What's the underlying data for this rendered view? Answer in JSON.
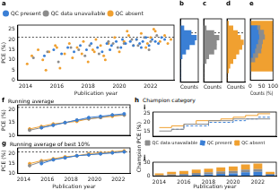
{
  "chart_data": [
    {
      "type": "scatter",
      "title": "a",
      "x_label": "Publication year",
      "y_label": "PCE (%)",
      "xlim": [
        2013.5,
        2023.5
      ],
      "xticks": [
        2014,
        2016,
        2018,
        2020,
        2022
      ],
      "ylim": [
        0,
        27
      ],
      "yticks": [
        0,
        5,
        10,
        15,
        20,
        25
      ],
      "grid": false,
      "legend": "top",
      "reference_y": 21,
      "marker": "circle",
      "series": [
        {
          "name": "QC present",
          "color": "#3a7fd5",
          "x": [
            2015.2,
            2015.8,
            2016.3,
            2016.7,
            2017.1,
            2017.5,
            2017.9,
            2018.2,
            2018.6,
            2018.9,
            2019.2,
            2019.5,
            2019.8,
            2020.1,
            2020.4,
            2020.7,
            2020.9,
            2021.1,
            2021.3,
            2021.5,
            2021.7,
            2021.9,
            2022.1,
            2022.3,
            2022.5,
            2022.7,
            2022.9,
            2021.4,
            2020.2,
            2019.4
          ],
          "values": [
            12,
            15,
            13,
            16,
            14,
            17,
            15,
            18,
            16,
            14,
            18,
            17,
            19,
            16,
            18,
            19,
            17,
            20,
            18,
            19,
            21,
            17,
            20,
            19,
            18,
            21,
            20,
            16,
            20,
            15
          ]
        },
        {
          "name": "QC data unavailable",
          "color": "#8c8c8c",
          "x": [
            2014.5,
            2015.4,
            2016.1,
            2016.9,
            2017.4,
            2018.1,
            2018.7,
            2019.3,
            2019.9,
            2020.3,
            2020.8,
            2021.2,
            2021.6,
            2022.0,
            2022.4,
            2017.8,
            2019.6,
            2021.9
          ],
          "values": [
            11,
            14,
            9,
            16,
            15,
            17,
            13,
            19,
            16,
            18,
            20,
            17,
            21,
            19,
            22,
            12,
            18,
            15
          ]
        },
        {
          "name": "QC absent",
          "color": "#f0a030",
          "x": [
            2014.1,
            2014.4,
            2014.8,
            2015.1,
            2015.5,
            2015.9,
            2016.2,
            2016.5,
            2016.8,
            2017.0,
            2017.3,
            2017.7,
            2018.0,
            2018.3,
            2018.5,
            2018.8,
            2019.0,
            2019.3,
            2019.7,
            2020.0,
            2020.3,
            2020.6,
            2020.9,
            2021.1,
            2021.4,
            2021.7,
            2022.0,
            2022.3,
            2022.6,
            2022.9,
            2023.1,
            2023.3,
            2015.3,
            2016.0,
            2017.6,
            2019.1,
            2020.5,
            2021.8,
            2022.2,
            2018.4
          ],
          "values": [
            8,
            12,
            15,
            10,
            14,
            17,
            6,
            13,
            18,
            11,
            16,
            19,
            9,
            15,
            20,
            17,
            12,
            18,
            21,
            14,
            19,
            22,
            17,
            20,
            23,
            16,
            21,
            24,
            19,
            22,
            18,
            20,
            5,
            16,
            13,
            10,
            24,
            18,
            25,
            14
          ]
        }
      ]
    },
    {
      "type": "histogram",
      "title": "b",
      "orientation": "horizontal",
      "x_label": "Counts",
      "bins": [
        0,
        2,
        4,
        6,
        8,
        10,
        12,
        14,
        16,
        18,
        20,
        22,
        24,
        26
      ],
      "values": [
        0,
        0,
        0,
        0,
        0,
        1,
        3,
        5,
        8,
        9,
        6,
        2,
        0
      ],
      "color": "#3a7fd5",
      "xlim": [
        0,
        10
      ],
      "ylim": [
        0,
        27
      ],
      "tick_labels": false,
      "grid": false,
      "reference_y": 21
    },
    {
      "type": "histogram",
      "title": "c",
      "orientation": "horizontal",
      "x_label": "Counts",
      "bins": [
        0,
        2,
        4,
        6,
        8,
        10,
        12,
        14,
        16,
        18,
        20,
        22,
        24,
        26
      ],
      "values": [
        0,
        0,
        0,
        0,
        1,
        2,
        4,
        5,
        5,
        6,
        4,
        1,
        0
      ],
      "color": "#8c8c8c",
      "xlim": [
        0,
        7
      ],
      "ylim": [
        0,
        27
      ],
      "tick_labels": false,
      "grid": false,
      "reference_y": 21
    },
    {
      "type": "histogram",
      "title": "d",
      "orientation": "horizontal",
      "x_label": "Counts",
      "bins": [
        0,
        2,
        4,
        6,
        8,
        10,
        12,
        14,
        16,
        18,
        20,
        22,
        24,
        26
      ],
      "values": [
        0,
        0,
        1,
        2,
        4,
        6,
        8,
        10,
        11,
        9,
        7,
        4,
        1
      ],
      "color": "#f0a030",
      "xlim": [
        0,
        12
      ],
      "ylim": [
        0,
        27
      ],
      "tick_labels": false,
      "grid": false,
      "reference_y": 21
    },
    {
      "type": "bar",
      "title": "e",
      "orientation": "horizontal",
      "stacked": true,
      "x_label": "Counts (%)",
      "bins": [
        0,
        2,
        4,
        6,
        8,
        10,
        12,
        14,
        16,
        18,
        20,
        22,
        24,
        26
      ],
      "xlim": [
        0,
        100
      ],
      "xticks": [
        0,
        50,
        100
      ],
      "ylim": [
        0,
        27
      ],
      "tick_labels": "x",
      "grid": false,
      "reference_y": 21,
      "series": [
        {
          "name": "QC present",
          "color": "#3a7fd5",
          "values": [
            0,
            0,
            0,
            0,
            0,
            11,
            20,
            25,
            33,
            38,
            35,
            29,
            0
          ]
        },
        {
          "name": "QC data unavailable",
          "color": "#8c8c8c",
          "values": [
            0,
            0,
            0,
            0,
            20,
            22,
            27,
            25,
            21,
            25,
            24,
            14,
            0
          ]
        },
        {
          "name": "QC absent",
          "color": "#f0a030",
          "values": [
            0,
            0,
            100,
            100,
            80,
            67,
            53,
            50,
            46,
            37,
            41,
            57,
            100
          ]
        }
      ]
    },
    {
      "type": "line",
      "title": "f",
      "subtitle": "Running average",
      "y_label": "PCE (%)",
      "x": [
        2014.5,
        2015.5,
        2016.5,
        2017.5,
        2018.5,
        2019.5,
        2020.5,
        2021.5,
        2022.5
      ],
      "xlim": [
        2013.5,
        2023
      ],
      "xticks": [
        2014,
        2016,
        2018,
        2020,
        2022
      ],
      "ylim": [
        10,
        22
      ],
      "yticks": [
        10,
        15,
        20
      ],
      "tick_labels": "y",
      "grid": false,
      "reference_y": 21,
      "marker": "circle",
      "series": [
        {
          "name": "QC present",
          "color": "#3a7fd5",
          "values": [
            null,
            13,
            14,
            15,
            16,
            17,
            17.5,
            18,
            18.5
          ]
        },
        {
          "name": "QC data unavailable",
          "color": "#8c8c8c",
          "values": [
            12,
            13,
            14,
            15,
            16,
            16.5,
            17,
            18,
            18
          ]
        },
        {
          "name": "QC absent",
          "color": "#f0a030",
          "values": [
            12.5,
            13.5,
            14.5,
            15,
            15.5,
            16.5,
            17,
            17.5,
            18
          ]
        }
      ]
    },
    {
      "type": "line",
      "title": "g",
      "subtitle": "Running average of best 10%",
      "x_label": "Publication year",
      "y_label": "PCE (%)",
      "x": [
        2014.5,
        2015.5,
        2016.5,
        2017.5,
        2018.5,
        2019.5,
        2020.5,
        2021.5,
        2022.5
      ],
      "xlim": [
        2013.5,
        2023
      ],
      "xticks": [
        2014,
        2016,
        2018,
        2020,
        2022
      ],
      "ylim": [
        10,
        23
      ],
      "yticks": [
        10,
        15,
        20
      ],
      "grid": false,
      "reference_y": 21,
      "marker": "circle",
      "series": [
        {
          "name": "QC present",
          "color": "#3a7fd5",
          "values": [
            null,
            15,
            17,
            18,
            19,
            19.5,
            20,
            20.5,
            21
          ]
        },
        {
          "name": "QC data unavailable",
          "color": "#8c8c8c",
          "values": [
            14,
            16,
            17,
            18,
            19,
            19.5,
            20,
            20.5,
            21
          ]
        },
        {
          "name": "QC absent",
          "color": "#f0a030",
          "values": [
            15,
            16.5,
            17.5,
            18.5,
            19,
            20,
            20.5,
            21,
            21.5
          ]
        }
      ]
    },
    {
      "type": "step",
      "title": "i",
      "header": {
        "label": "h",
        "text": "Champion category"
      },
      "y_label": "Champion PCE (%)",
      "x": [
        2014,
        2015,
        2016,
        2017,
        2018,
        2019,
        2020,
        2021,
        2022,
        2023
      ],
      "xlim": [
        2013.5,
        2023.5
      ],
      "xticks": [
        2014,
        2016,
        2018,
        2020,
        2022
      ],
      "ylim": [
        12,
        26
      ],
      "yticks": [
        15,
        20,
        25
      ],
      "tick_labels": "y",
      "legend": "bottom",
      "grid": false,
      "series": [
        {
          "name": "QC data unavailable",
          "color": "#8c8c8c",
          "line_style": "solid",
          "values": [
            15,
            16,
            19,
            19,
            21,
            21,
            22,
            22,
            22,
            22
          ]
        },
        {
          "name": "QC present",
          "color": "#3a7fd5",
          "line_style": "dashed",
          "values": [
            null,
            16,
            18,
            18,
            20,
            20,
            21,
            22,
            23,
            23
          ]
        },
        {
          "name": "QC absent",
          "color": "#f0a030",
          "line_style": "solid",
          "values": [
            17,
            18,
            19,
            21,
            21,
            22,
            23,
            24,
            25,
            25
          ]
        }
      ]
    },
    {
      "type": "bar",
      "title": "j",
      "stacked": true,
      "x_label": "Publication year",
      "categories": [
        "2014",
        null,
        "2016",
        null,
        "2018",
        null,
        "2020",
        null,
        "2022",
        null
      ],
      "ylim": [
        0,
        30
      ],
      "yticks": [
        0,
        30
      ],
      "grid": false,
      "series": [
        {
          "name": "QC present",
          "color": "#3a7fd5",
          "values": [
            0,
            1,
            2,
            3,
            4,
            5,
            6,
            8,
            9,
            3
          ]
        },
        {
          "name": "QC data unavailable",
          "color": "#8c8c8c",
          "values": [
            2,
            3,
            3,
            4,
            4,
            5,
            5,
            6,
            6,
            2
          ]
        },
        {
          "name": "QC absent",
          "color": "#f0a030",
          "values": [
            4,
            5,
            6,
            7,
            8,
            9,
            10,
            11,
            12,
            4
          ]
        }
      ]
    }
  ]
}
